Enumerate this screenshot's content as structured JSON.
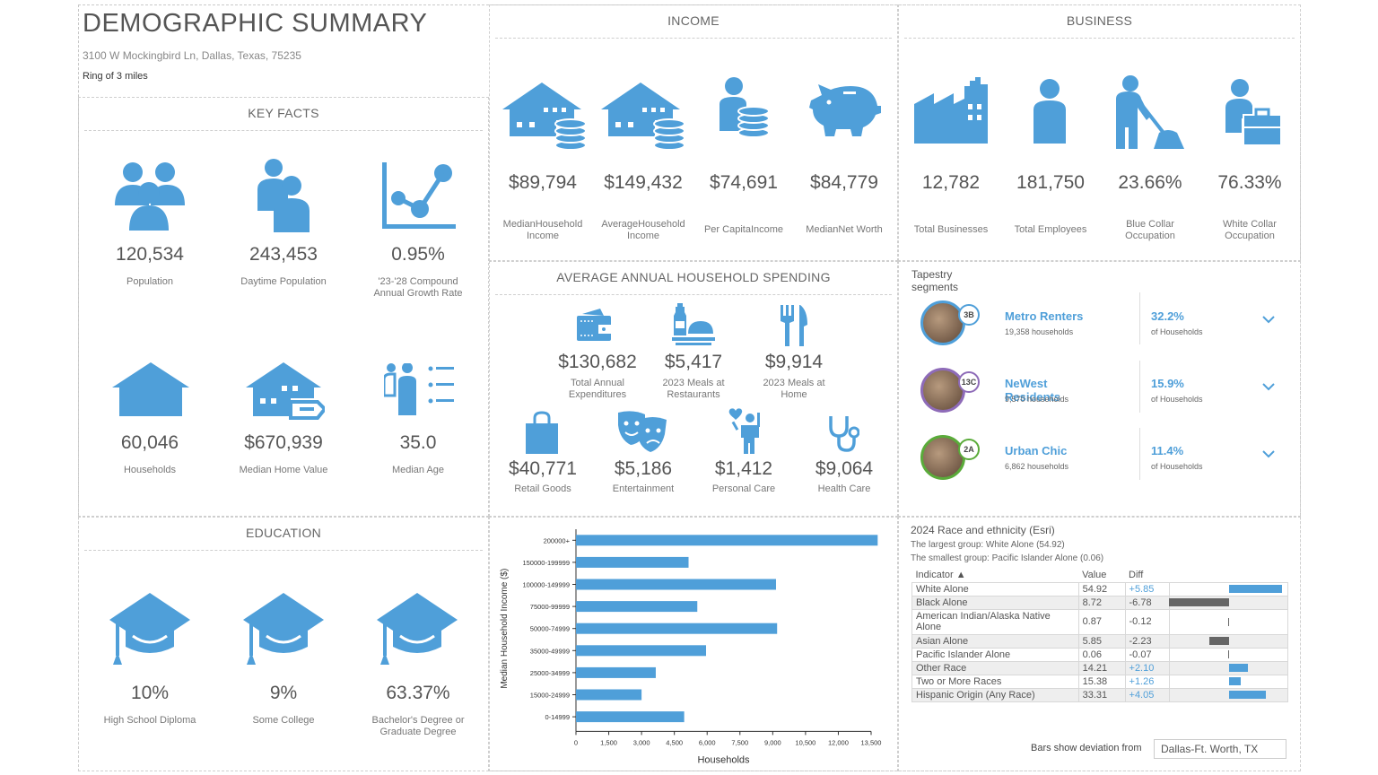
{
  "title": "DEMOGRAPHIC SUMMARY",
  "address": "3100 W Mockingbird Ln, Dallas, Texas, 75235",
  "ring": "Ring of 3 miles",
  "colors": {
    "accent": "#4f9fd9",
    "negative": "#666666"
  },
  "key_facts": {
    "header": "KEY FACTS",
    "items": [
      {
        "icon": "people-group-icon",
        "value": "120,534",
        "label": "Population"
      },
      {
        "icon": "daytime-people-icon",
        "value": "243,453",
        "label": "Daytime Population"
      },
      {
        "icon": "growth-chart-icon",
        "value": "0.95%",
        "label": "'23-'28 Compound Annual Growth Rate"
      },
      {
        "icon": "house-icon",
        "value": "60,046",
        "label": "Households"
      },
      {
        "icon": "home-value-icon",
        "value": "$670,939",
        "label": "Median Home Value"
      },
      {
        "icon": "age-icon",
        "value": "35.0",
        "label": "Median Age"
      }
    ]
  },
  "education": {
    "header": "EDUCATION",
    "items": [
      {
        "icon": "graduation-cap-icon",
        "value": "10%",
        "label": "High School Diploma"
      },
      {
        "icon": "graduation-cap-icon",
        "value": "9%",
        "label": "Some College"
      },
      {
        "icon": "graduation-cap-icon",
        "value": "63.37%",
        "label": "Bachelor's Degree or Graduate Degree"
      }
    ]
  },
  "income": {
    "header": "INCOME",
    "items": [
      {
        "icon": "house-coins-icon",
        "value": "$89,794",
        "label": "MedianHousehold Income"
      },
      {
        "icon": "house-coins-icon",
        "value": "$149,432",
        "label": "AverageHousehold Income"
      },
      {
        "icon": "person-coins-icon",
        "value": "$74,691",
        "label": "Per CapitaIncome"
      },
      {
        "icon": "piggy-bank-icon",
        "value": "$84,779",
        "label": "MedianNet Worth"
      }
    ]
  },
  "business": {
    "header": "BUSINESS",
    "items": [
      {
        "icon": "factory-icon",
        "value": "12,782",
        "label": "Total Businesses"
      },
      {
        "icon": "person-icon",
        "value": "181,750",
        "label": "Total Employees"
      },
      {
        "icon": "blue-collar-icon",
        "value": "23.66%",
        "label": "Blue Collar Occupation"
      },
      {
        "icon": "white-collar-icon",
        "value": "76.33%",
        "label": "White Collar Occupation"
      }
    ]
  },
  "spending": {
    "header": "AVERAGE ANNUAL HOUSEHOLD SPENDING",
    "items": [
      {
        "icon": "wallet-icon",
        "value": "$130,682",
        "label": "Total Annual Expenditures"
      },
      {
        "icon": "restaurant-meal-icon",
        "value": "$5,417",
        "label": "2023 Meals at Restaurants"
      },
      {
        "icon": "fork-knife-icon",
        "value": "$9,914",
        "label": "2023 Meals at Home"
      },
      {
        "icon": "shopping-bag-icon",
        "value": "$40,771",
        "label": "Retail Goods"
      },
      {
        "icon": "theater-masks-icon",
        "value": "$5,186",
        "label": "Entertainment"
      },
      {
        "icon": "personal-care-icon",
        "value": "$1,412",
        "label": "Personal Care"
      },
      {
        "icon": "stethoscope-icon",
        "value": "$9,064",
        "label": "Health Care"
      }
    ]
  },
  "tapestry": {
    "header": "Tapestry segments",
    "items": [
      {
        "code": "3B",
        "name": "Metro Renters",
        "households": "19,358 households",
        "pct": "32.2%",
        "pct_label": "of Households",
        "ring_color": "#4f9fd9"
      },
      {
        "code": "13C",
        "name": "NeWest Residents",
        "households": "9,570 households",
        "pct": "15.9%",
        "pct_label": "of Households",
        "ring_color": "#8e6bb8"
      },
      {
        "code": "2A",
        "name": "Urban Chic",
        "households": "6,862 households",
        "pct": "11.4%",
        "pct_label": "of Households",
        "ring_color": "#5aab3a"
      }
    ]
  },
  "race": {
    "title": "2024 Race and ethnicity (Esri)",
    "largest": "The largest group: White Alone (54.92)",
    "smallest": "The smallest group: Pacific Islander Alone (0.06)",
    "columns": [
      "Indicator ▲",
      "Value",
      "Diff"
    ],
    "rows": [
      {
        "indicator": "White Alone",
        "value": "54.92",
        "diff": "+5.85",
        "d": 5.85
      },
      {
        "indicator": "Black Alone",
        "value": "8.72",
        "diff": "-6.78",
        "d": -6.78
      },
      {
        "indicator": "American Indian/Alaska Native Alone",
        "value": "0.87",
        "diff": "-0.12",
        "d": -0.12
      },
      {
        "indicator": "Asian Alone",
        "value": "5.85",
        "diff": "-2.23",
        "d": -2.23
      },
      {
        "indicator": "Pacific Islander Alone",
        "value": "0.06",
        "diff": "-0.07",
        "d": -0.07
      },
      {
        "indicator": "Other Race",
        "value": "14.21",
        "diff": "+2.10",
        "d": 2.1
      },
      {
        "indicator": "Two or More Races",
        "value": "15.38",
        "diff": "+1.26",
        "d": 1.26
      },
      {
        "indicator": "Hispanic Origin (Any Race)",
        "value": "33.31",
        "diff": "+4.05",
        "d": 4.05
      }
    ],
    "deviation_label": "Bars show deviation from",
    "deviation_value": "Dallas-Ft. Worth, TX"
  },
  "chart_data": {
    "type": "bar",
    "orientation": "horizontal",
    "categories": [
      "200000+",
      "150000-199999",
      "100000-149999",
      "75000-99999",
      "50000-74999",
      "35000-49999",
      "25000-34999",
      "15000-24999",
      "0-14999"
    ],
    "values": [
      13800,
      5150,
      9150,
      5550,
      9200,
      5950,
      3650,
      3000,
      4950
    ],
    "xlabel": "Households",
    "ylabel": "Median Household Income ($)",
    "xlim": [
      0,
      13500
    ],
    "xticks": [
      "0",
      "1,500",
      "3,000",
      "4,500",
      "6,000",
      "7,500",
      "9,000",
      "10,500",
      "12,000",
      "13,500"
    ],
    "grid": false,
    "color": "#4f9fd9"
  }
}
